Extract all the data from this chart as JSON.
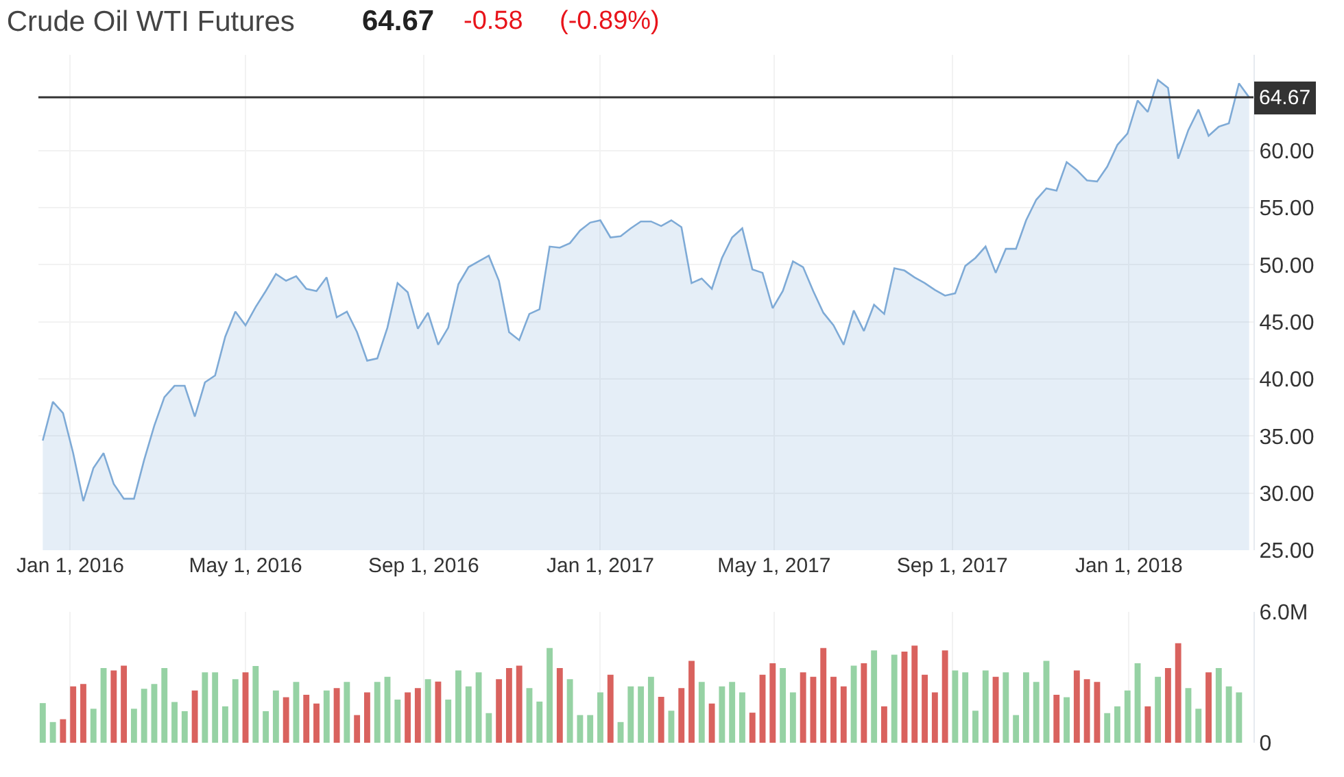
{
  "chart_data": [
    {
      "type": "area",
      "title": "Crude Oil WTI Futures",
      "annotations": [
        "64.67",
        "-0.58",
        "(-0.89%)"
      ],
      "x": [
        "2015-12-13",
        "2015-12-20",
        "2015-12-27",
        "2016-01-03",
        "2016-01-10",
        "2016-01-17",
        "2016-01-24",
        "2016-01-31",
        "2016-02-07",
        "2016-02-14",
        "2016-02-21",
        "2016-02-28",
        "2016-03-06",
        "2016-03-13",
        "2016-03-20",
        "2016-03-27",
        "2016-04-03",
        "2016-04-10",
        "2016-04-17",
        "2016-04-24",
        "2016-05-01",
        "2016-05-08",
        "2016-05-15",
        "2016-05-22",
        "2016-05-29",
        "2016-06-05",
        "2016-06-12",
        "2016-06-19",
        "2016-06-26",
        "2016-07-03",
        "2016-07-10",
        "2016-07-17",
        "2016-07-24",
        "2016-07-31",
        "2016-08-07",
        "2016-08-14",
        "2016-08-21",
        "2016-08-28",
        "2016-09-04",
        "2016-09-11",
        "2016-09-18",
        "2016-09-25",
        "2016-10-02",
        "2016-10-09",
        "2016-10-16",
        "2016-10-23",
        "2016-10-30",
        "2016-11-06",
        "2016-11-13",
        "2016-11-20",
        "2016-11-27",
        "2016-12-04",
        "2016-12-11",
        "2016-12-18",
        "2016-12-25",
        "2017-01-01",
        "2017-01-08",
        "2017-01-15",
        "2017-01-22",
        "2017-01-29",
        "2017-02-05",
        "2017-02-12",
        "2017-02-19",
        "2017-02-26",
        "2017-03-05",
        "2017-03-12",
        "2017-03-19",
        "2017-03-26",
        "2017-04-02",
        "2017-04-09",
        "2017-04-16",
        "2017-04-23",
        "2017-04-30",
        "2017-05-07",
        "2017-05-14",
        "2017-05-21",
        "2017-05-28",
        "2017-06-04",
        "2017-06-11",
        "2017-06-18",
        "2017-06-25",
        "2017-07-02",
        "2017-07-09",
        "2017-07-16",
        "2017-07-23",
        "2017-07-30",
        "2017-08-06",
        "2017-08-13",
        "2017-08-20",
        "2017-08-27",
        "2017-09-03",
        "2017-09-10",
        "2017-09-17",
        "2017-09-24",
        "2017-10-01",
        "2017-10-08",
        "2017-10-15",
        "2017-10-22",
        "2017-10-29",
        "2017-11-05",
        "2017-11-12",
        "2017-11-19",
        "2017-11-26",
        "2017-12-03",
        "2017-12-10",
        "2017-12-17",
        "2017-12-24",
        "2017-12-31",
        "2018-01-07",
        "2018-01-14",
        "2018-01-21",
        "2018-01-28",
        "2018-02-04",
        "2018-02-11",
        "2018-02-18",
        "2018-02-25",
        "2018-03-04",
        "2018-03-11",
        "2018-03-18",
        "2018-03-25"
      ],
      "series": [
        {
          "color": "#7eaad6",
          "values": [
            34.6,
            38.0,
            37.0,
            33.5,
            29.3,
            32.2,
            33.5,
            30.8,
            29.5,
            29.5,
            32.9,
            35.9,
            38.4,
            39.4,
            39.4,
            36.7,
            39.7,
            40.3,
            43.7,
            45.9,
            44.7,
            46.3,
            47.7,
            49.2,
            48.6,
            49.0,
            47.9,
            47.7,
            48.9,
            45.4,
            45.9,
            44.1,
            41.6,
            41.8,
            44.5,
            48.4,
            47.6,
            44.4,
            45.8,
            43.0,
            44.5,
            48.3,
            49.8,
            50.3,
            50.8,
            48.6,
            44.1,
            43.4,
            45.7,
            46.1,
            51.6,
            51.5,
            51.9,
            53.0,
            53.7,
            53.9,
            52.4,
            52.5,
            53.2,
            53.8,
            53.8,
            53.4,
            53.9,
            53.3,
            48.4,
            48.8,
            47.9,
            50.6,
            52.4,
            53.2,
            49.6,
            49.3,
            46.2,
            47.7,
            50.3,
            49.8,
            47.7,
            45.8,
            44.7,
            43.0,
            46.0,
            44.2,
            46.5,
            45.7,
            49.7,
            49.5,
            48.9,
            48.4,
            47.8,
            47.3,
            47.5,
            49.9,
            50.6,
            51.6,
            49.3,
            51.4,
            51.4,
            53.9,
            55.7,
            56.7,
            56.5,
            59.0,
            58.3,
            57.4,
            57.3,
            58.6,
            60.5,
            61.5,
            64.4,
            63.4,
            66.2,
            65.5,
            59.3,
            61.8,
            63.6,
            61.3,
            62.1,
            62.4,
            65.9,
            64.67
          ]
        }
      ],
      "xlim": [
        "2015-12-10",
        "2018-03-28"
      ],
      "xticks": [
        {
          "value": "2016-01-01",
          "label": "Jan 1, 2016"
        },
        {
          "value": "2016-05-01",
          "label": "May 1, 2016"
        },
        {
          "value": "2016-09-01",
          "label": "Sep 1, 2016"
        },
        {
          "value": "2017-01-01",
          "label": "Jan 1, 2017"
        },
        {
          "value": "2017-05-01",
          "label": "May 1, 2017"
        },
        {
          "value": "2017-09-01",
          "label": "Sep 1, 2017"
        },
        {
          "value": "2018-01-01",
          "label": "Jan 1, 2018"
        }
      ],
      "ylim": [
        25,
        68.4
      ],
      "yticks": [
        {
          "value": 25,
          "label": "25.00"
        },
        {
          "value": 30,
          "label": "30.00"
        },
        {
          "value": 35,
          "label": "35.00"
        },
        {
          "value": 40,
          "label": "40.00"
        },
        {
          "value": 45,
          "label": "45.00"
        },
        {
          "value": 50,
          "label": "50.00"
        },
        {
          "value": 55,
          "label": "55.00"
        },
        {
          "value": 60,
          "label": "60.00"
        }
      ],
      "ref_lines": [
        {
          "axis": "y",
          "value": 64.67,
          "label": "64.67",
          "color": "#333333"
        }
      ],
      "grid": true,
      "marker": "none",
      "line_style": "solid"
    },
    {
      "type": "bar",
      "x": [
        "2015-12-13",
        "2015-12-20",
        "2015-12-27",
        "2016-01-03",
        "2016-01-10",
        "2016-01-17",
        "2016-01-24",
        "2016-01-31",
        "2016-02-07",
        "2016-02-14",
        "2016-02-21",
        "2016-02-28",
        "2016-03-06",
        "2016-03-13",
        "2016-03-20",
        "2016-03-27",
        "2016-04-03",
        "2016-04-10",
        "2016-04-17",
        "2016-04-24",
        "2016-05-01",
        "2016-05-08",
        "2016-05-15",
        "2016-05-22",
        "2016-05-29",
        "2016-06-05",
        "2016-06-12",
        "2016-06-19",
        "2016-06-26",
        "2016-07-03",
        "2016-07-10",
        "2016-07-17",
        "2016-07-24",
        "2016-07-31",
        "2016-08-07",
        "2016-08-14",
        "2016-08-21",
        "2016-08-28",
        "2016-09-04",
        "2016-09-11",
        "2016-09-18",
        "2016-09-25",
        "2016-10-02",
        "2016-10-09",
        "2016-10-16",
        "2016-10-23",
        "2016-10-30",
        "2016-11-06",
        "2016-11-13",
        "2016-11-20",
        "2016-11-27",
        "2016-12-04",
        "2016-12-11",
        "2016-12-18",
        "2016-12-25",
        "2017-01-01",
        "2017-01-08",
        "2017-01-15",
        "2017-01-22",
        "2017-01-29",
        "2017-02-05",
        "2017-02-12",
        "2017-02-19",
        "2017-02-26",
        "2017-03-05",
        "2017-03-12",
        "2017-03-19",
        "2017-03-26",
        "2017-04-02",
        "2017-04-09",
        "2017-04-16",
        "2017-04-23",
        "2017-04-30",
        "2017-05-07",
        "2017-05-14",
        "2017-05-21",
        "2017-05-28",
        "2017-06-04",
        "2017-06-11",
        "2017-06-18",
        "2017-06-25",
        "2017-07-02",
        "2017-07-09",
        "2017-07-16",
        "2017-07-23",
        "2017-07-30",
        "2017-08-06",
        "2017-08-13",
        "2017-08-20",
        "2017-08-27",
        "2017-09-03",
        "2017-09-10",
        "2017-09-17",
        "2017-09-24",
        "2017-10-01",
        "2017-10-08",
        "2017-10-15",
        "2017-10-22",
        "2017-10-29",
        "2017-11-05",
        "2017-11-12",
        "2017-11-19",
        "2017-11-26",
        "2017-12-03",
        "2017-12-10",
        "2017-12-17",
        "2017-12-24",
        "2017-12-31",
        "2018-01-07",
        "2018-01-14",
        "2018-01-21",
        "2018-01-28",
        "2018-02-04",
        "2018-02-11",
        "2018-02-18",
        "2018-02-25",
        "2018-03-04",
        "2018-03-11",
        "2018-03-18"
      ],
      "values": [
        1.82,
        0.95,
        1.08,
        2.59,
        2.7,
        1.56,
        3.43,
        3.32,
        3.54,
        1.56,
        2.48,
        2.7,
        3.43,
        1.87,
        1.45,
        2.4,
        3.23,
        3.23,
        1.67,
        2.92,
        3.23,
        3.52,
        1.45,
        2.4,
        2.09,
        2.79,
        2.2,
        1.8,
        2.4,
        2.51,
        2.79,
        1.27,
        2.31,
        2.79,
        3.03,
        1.98,
        2.31,
        2.51,
        2.92,
        2.81,
        1.98,
        3.32,
        2.59,
        3.23,
        1.36,
        2.92,
        3.43,
        3.54,
        2.51,
        1.89,
        4.35,
        3.43,
        2.92,
        1.27,
        1.27,
        2.31,
        3.12,
        0.95,
        2.59,
        2.59,
        3.03,
        2.11,
        1.47,
        2.51,
        3.76,
        2.79,
        1.8,
        2.59,
        2.79,
        2.31,
        1.38,
        3.12,
        3.65,
        3.43,
        2.31,
        3.23,
        3.03,
        4.35,
        3.03,
        2.59,
        3.54,
        3.65,
        4.24,
        1.67,
        4.04,
        4.18,
        4.46,
        3.12,
        2.31,
        4.24,
        3.32,
        3.23,
        1.47,
        3.32,
        3.03,
        3.23,
        1.27,
        3.23,
        2.79,
        3.76,
        2.2,
        2.09,
        3.32,
        2.92,
        2.79,
        1.36,
        1.67,
        2.4,
        3.65,
        1.67,
        3.03,
        3.43,
        4.57,
        2.51,
        1.56,
        3.23,
        3.43,
        2.59,
        2.31
      ],
      "colors": [
        "#96d2a4",
        "#96d2a4",
        "#d9625e",
        "#d9625e",
        "#d9625e",
        "#96d2a4",
        "#96d2a4",
        "#d9625e",
        "#d9625e",
        "#96d2a4",
        "#96d2a4",
        "#96d2a4",
        "#96d2a4",
        "#96d2a4",
        "#96d2a4",
        "#d9625e",
        "#96d2a4",
        "#96d2a4",
        "#96d2a4",
        "#96d2a4",
        "#d9625e",
        "#96d2a4",
        "#96d2a4",
        "#96d2a4",
        "#d9625e",
        "#96d2a4",
        "#d9625e",
        "#d9625e",
        "#96d2a4",
        "#d9625e",
        "#96d2a4",
        "#d9625e",
        "#d9625e",
        "#96d2a4",
        "#96d2a4",
        "#96d2a4",
        "#d9625e",
        "#d9625e",
        "#96d2a4",
        "#d9625e",
        "#96d2a4",
        "#96d2a4",
        "#96d2a4",
        "#96d2a4",
        "#96d2a4",
        "#d9625e",
        "#d9625e",
        "#d9625e",
        "#96d2a4",
        "#96d2a4",
        "#96d2a4",
        "#d9625e",
        "#96d2a4",
        "#96d2a4",
        "#96d2a4",
        "#96d2a4",
        "#d9625e",
        "#96d2a4",
        "#96d2a4",
        "#96d2a4",
        "#96d2a4",
        "#d9625e",
        "#96d2a4",
        "#d9625e",
        "#d9625e",
        "#96d2a4",
        "#d9625e",
        "#96d2a4",
        "#96d2a4",
        "#96d2a4",
        "#d9625e",
        "#d9625e",
        "#d9625e",
        "#96d2a4",
        "#96d2a4",
        "#d9625e",
        "#d9625e",
        "#d9625e",
        "#d9625e",
        "#d9625e",
        "#96d2a4",
        "#d9625e",
        "#96d2a4",
        "#d9625e",
        "#96d2a4",
        "#d9625e",
        "#d9625e",
        "#d9625e",
        "#d9625e",
        "#d9625e",
        "#96d2a4",
        "#96d2a4",
        "#96d2a4",
        "#96d2a4",
        "#d9625e",
        "#96d2a4",
        "#96d2a4",
        "#96d2a4",
        "#96d2a4",
        "#96d2a4",
        "#d9625e",
        "#96d2a4",
        "#d9625e",
        "#d9625e",
        "#d9625e",
        "#96d2a4",
        "#96d2a4",
        "#96d2a4",
        "#96d2a4",
        "#d9625e",
        "#96d2a4",
        "#d9625e",
        "#d9625e",
        "#96d2a4",
        "#96d2a4",
        "#d9625e",
        "#96d2a4",
        "#96d2a4",
        "#96d2a4"
      ],
      "xlim": [
        "2015-12-10",
        "2018-03-28"
      ],
      "xticks": [
        {
          "value": "2016-01-01",
          "label": null
        },
        {
          "value": "2016-05-01",
          "label": null
        },
        {
          "value": "2016-09-01",
          "label": null
        },
        {
          "value": "2017-01-01",
          "label": null
        },
        {
          "value": "2017-05-01",
          "label": null
        },
        {
          "value": "2017-09-01",
          "label": null
        },
        {
          "value": "2018-01-01",
          "label": null
        }
      ],
      "ylim": [
        0,
        6
      ],
      "yticks": [
        0,
        {
          "value": 6,
          "label": "6.0M"
        }
      ],
      "tick_labels": "y",
      "grid": true
    }
  ]
}
